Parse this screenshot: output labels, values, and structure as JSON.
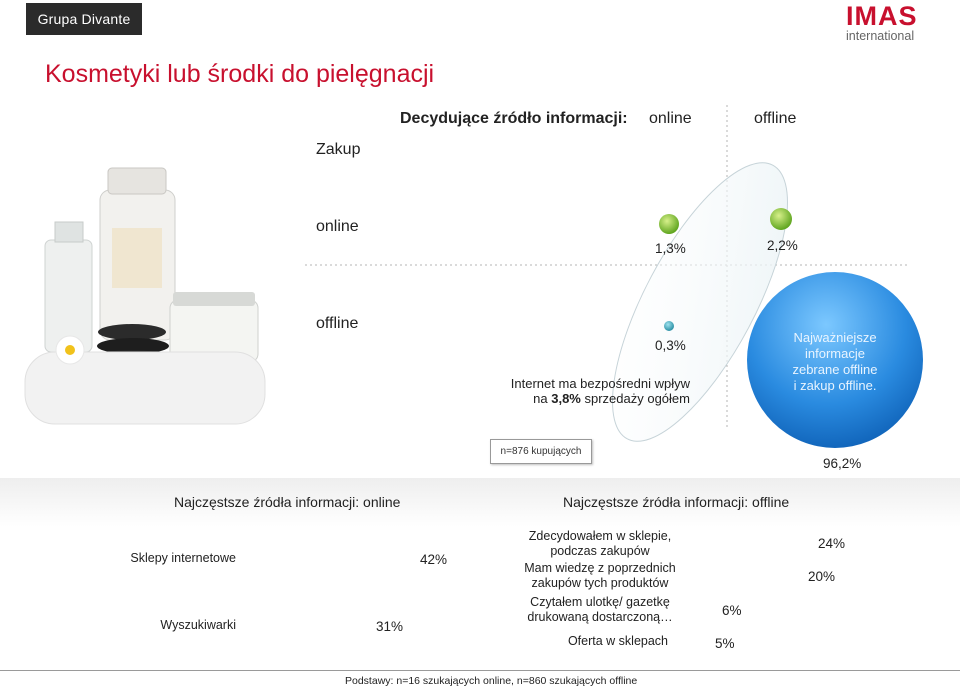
{
  "header": {
    "brand": "Grupa Divante",
    "logo_main": "IMAS",
    "logo_sub": "international",
    "page_title": "Kosmetyki lub środki do pielęgnacji"
  },
  "matrix": {
    "heading": "Decydujące źródło informacji:",
    "col_online": "online",
    "col_offline": "offline",
    "row_header": "Zakup",
    "row_online": "online",
    "row_offline": "offline",
    "cells": [
      {
        "row": "online",
        "col": "online",
        "value": 1.3,
        "label": "1,3%"
      },
      {
        "row": "online",
        "col": "offline",
        "value": 2.2,
        "label": "2,2%"
      },
      {
        "row": "offline",
        "col": "online",
        "value": 0.3,
        "label": "0,3%"
      },
      {
        "row": "offline",
        "col": "offline",
        "value": 96.2,
        "label": "96,2%"
      }
    ],
    "note_line1": "Internet ma bezpośredni wpływ",
    "note_line2_pre": "na ",
    "note_line2_bold": "3,8%",
    "note_line2_post": " sprzedaży ogółem",
    "bubble_l1": "Najważniejsze",
    "bubble_l2": "informacje",
    "bubble_l3": "zebrane offline",
    "bubble_l4": "i zakup offline.",
    "sample": "n=876 kupujących",
    "colors": {
      "green": "#8cc63f",
      "teal": "#3aa6b9",
      "blue": "#1e7fd6"
    }
  },
  "chart_data": [
    {
      "type": "bar",
      "title": "Najczęstsze źródła informacji: online",
      "categories": [
        "Sklepy internetowe",
        "Wyszukiwarki"
      ],
      "values": [
        42,
        31
      ],
      "value_labels": [
        "42%",
        "31%"
      ],
      "color": "#2db34a"
    },
    {
      "type": "bar",
      "title": "Najczęstsze źródła informacji: offline",
      "categories": [
        "Zdecydowałem w sklepie, podczas zakupów",
        "Mam wiedzę z poprzednich zakupów tych produktów",
        "Czytałem ulotkę/ gazetkę drukowaną dostarczoną…",
        "Oferta w sklepach"
      ],
      "values": [
        24,
        20,
        6,
        5
      ],
      "value_labels": [
        "24%",
        "20%",
        "6%",
        "5%"
      ],
      "color": "#1a73c9"
    }
  ],
  "footer": "Podstawy: n=16 szukających online, n=860 szukających offline"
}
